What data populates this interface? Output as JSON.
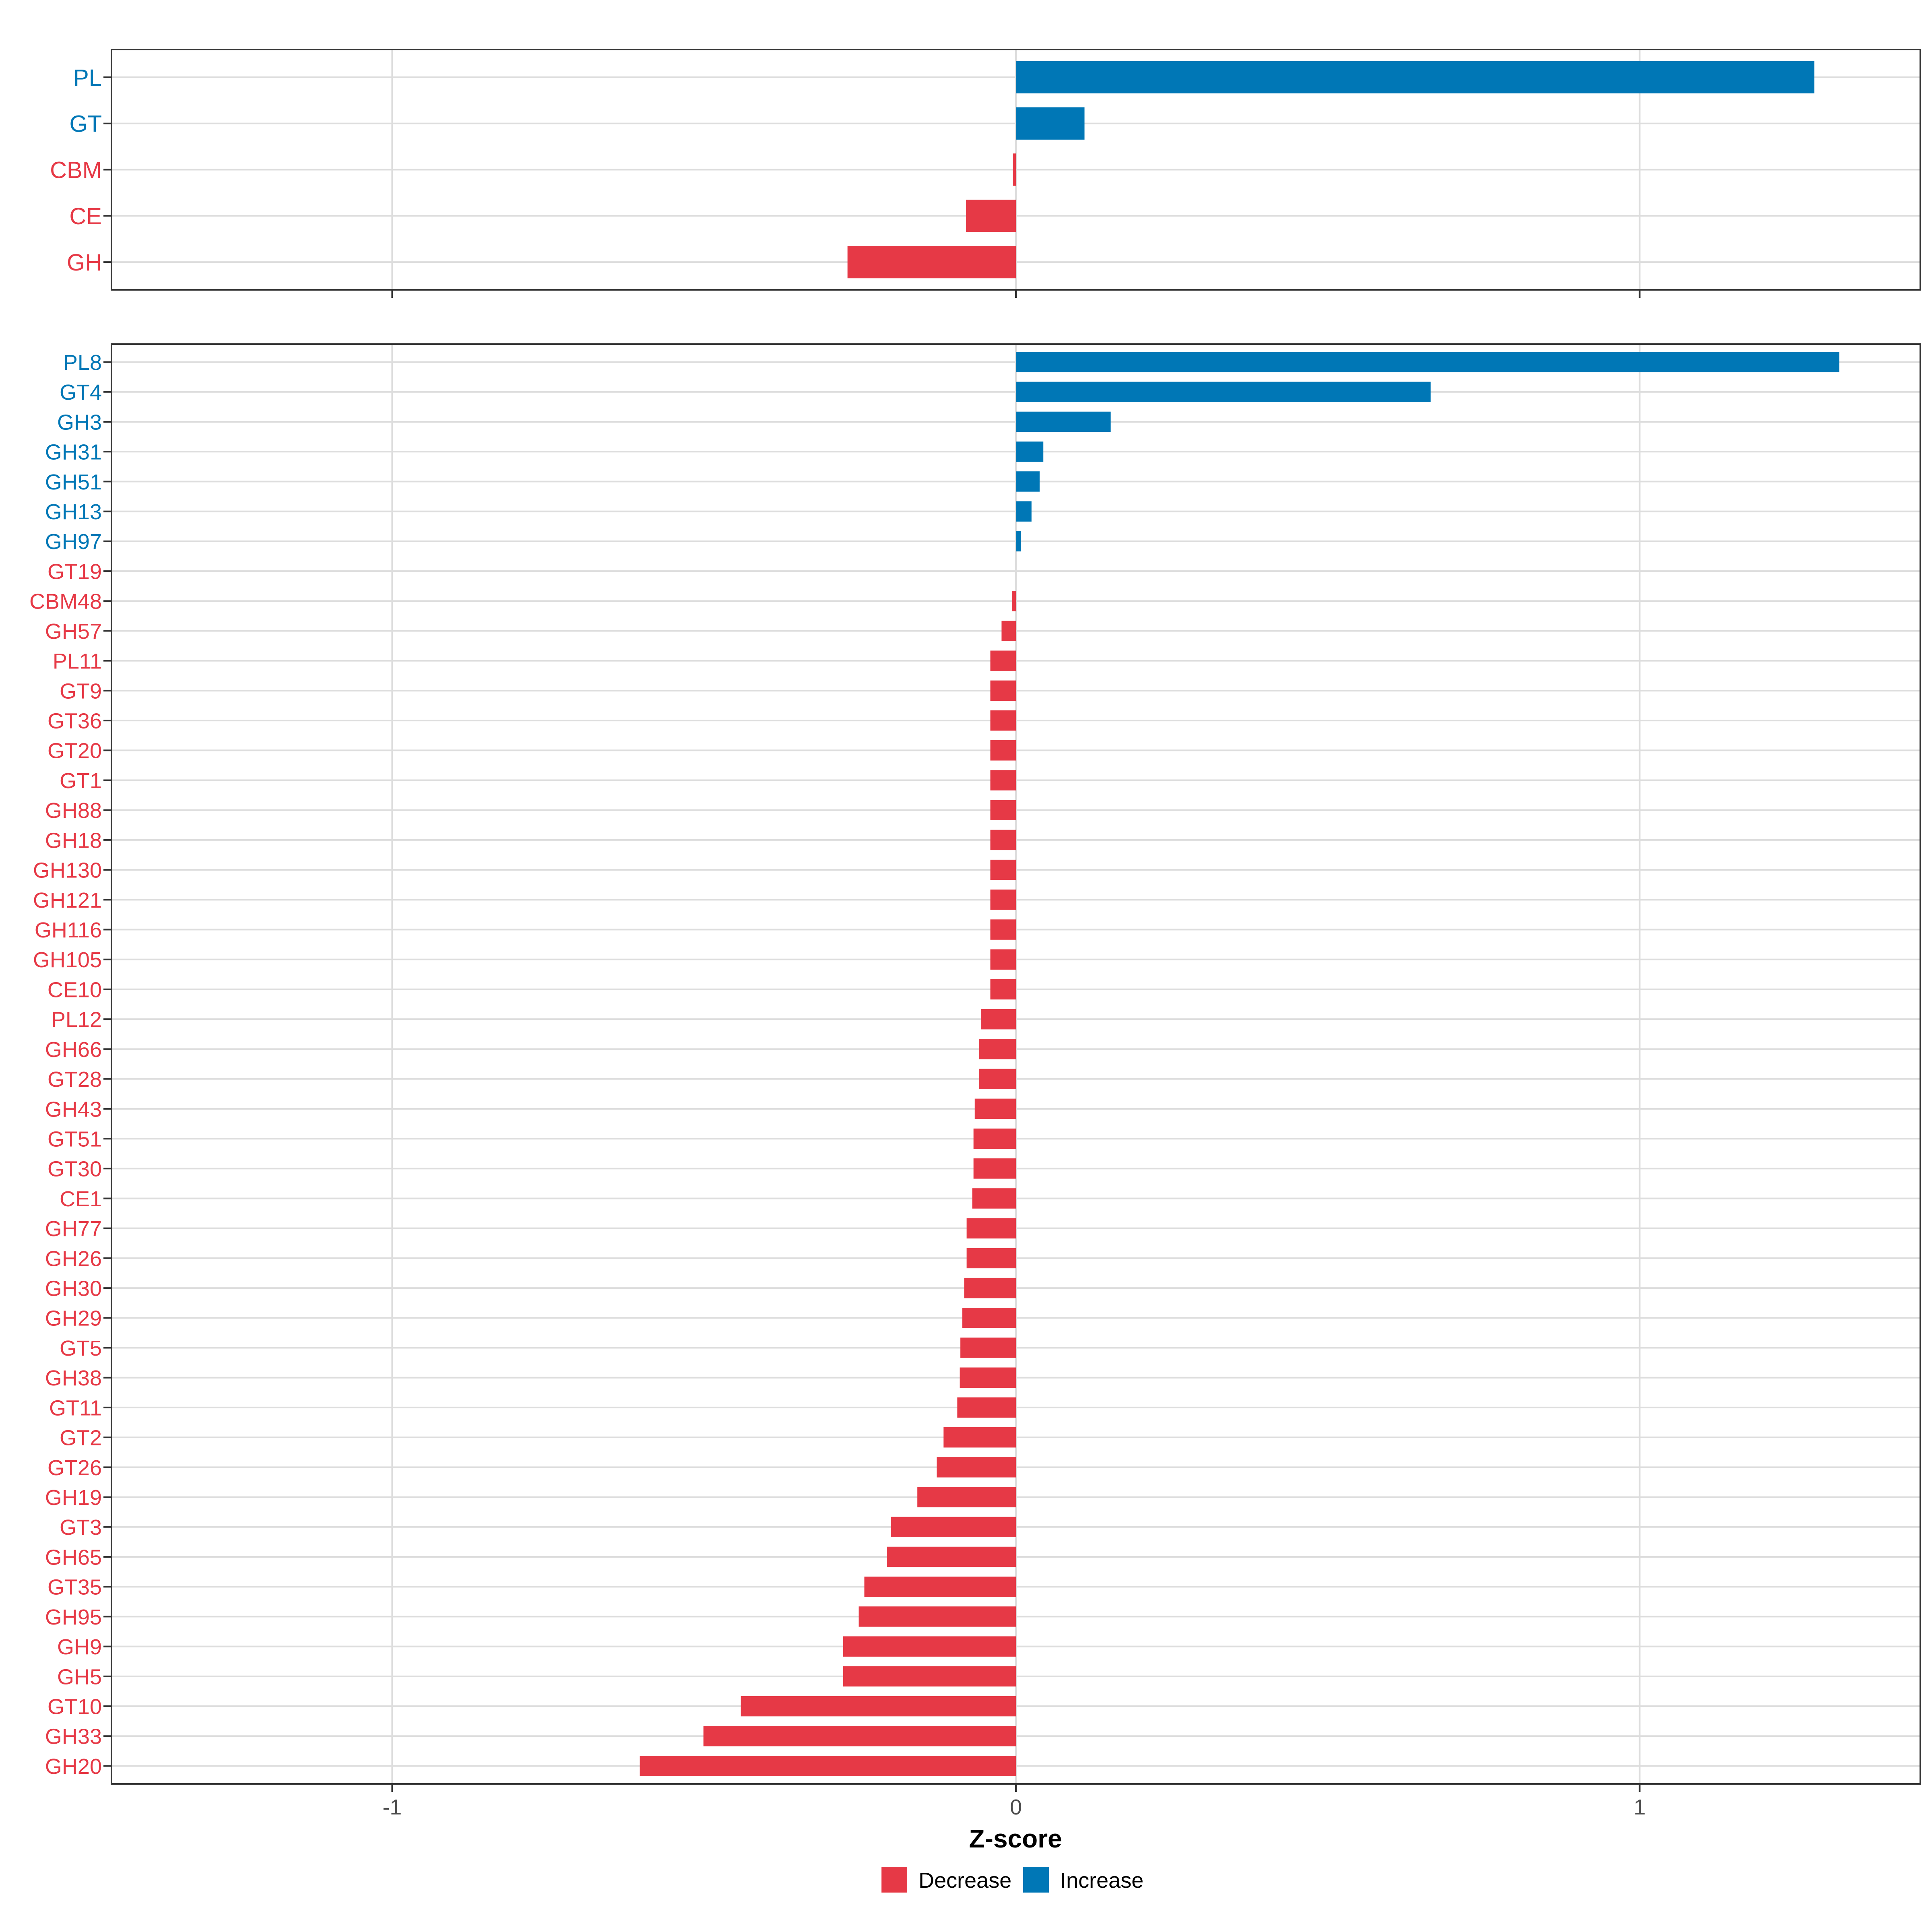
{
  "colors": {
    "decrease": "#E63946",
    "increase": "#0077B6",
    "grid": "#DDDDDD",
    "axis_text": "#4D4D4D",
    "frame": "#333333"
  },
  "chart_data": [
    {
      "type": "bar",
      "orientation": "horizontal",
      "panel": "top",
      "categories": [
        "PL",
        "GT",
        "CBM",
        "CE",
        "GH"
      ],
      "values": [
        1.28,
        0.11,
        -0.005,
        -0.08,
        -0.27
      ],
      "directions": [
        "Increase",
        "Increase",
        "Decrease",
        "Decrease",
        "Decrease"
      ],
      "xlim": [
        -1.45,
        1.45
      ],
      "xticks": [
        -1,
        0,
        1
      ],
      "grid": true
    },
    {
      "type": "bar",
      "orientation": "horizontal",
      "panel": "bottom",
      "categories": [
        "PL8",
        "GT4",
        "GH3",
        "GH31",
        "GH51",
        "GH13",
        "GH97",
        "GT19",
        "CBM48",
        "GH57",
        "PL11",
        "GT9",
        "GT36",
        "GT20",
        "GT1",
        "GH88",
        "GH18",
        "GH130",
        "GH121",
        "GH116",
        "GH105",
        "CE10",
        "PL12",
        "GH66",
        "GT28",
        "GH43",
        "GT51",
        "GT30",
        "CE1",
        "GH77",
        "GH26",
        "GH30",
        "GH29",
        "GT5",
        "GH38",
        "GT11",
        "GT2",
        "GT26",
        "GH19",
        "GT3",
        "GH65",
        "GT35",
        "GH95",
        "GH9",
        "GH5",
        "GT10",
        "GH33",
        "GH20"
      ],
      "values": [
        1.32,
        0.665,
        0.152,
        0.044,
        0.038,
        0.025,
        0.008,
        0.0,
        -0.006,
        -0.023,
        -0.041,
        -0.041,
        -0.041,
        -0.041,
        -0.041,
        -0.041,
        -0.041,
        -0.041,
        -0.041,
        -0.041,
        -0.041,
        -0.041,
        -0.056,
        -0.059,
        -0.059,
        -0.066,
        -0.068,
        -0.068,
        -0.07,
        -0.079,
        -0.079,
        -0.083,
        -0.086,
        -0.089,
        -0.09,
        -0.094,
        -0.116,
        -0.127,
        -0.158,
        -0.2,
        -0.207,
        -0.243,
        -0.252,
        -0.277,
        -0.277,
        -0.441,
        -0.501,
        -0.603
      ],
      "directions": [
        "Increase",
        "Increase",
        "Increase",
        "Increase",
        "Increase",
        "Increase",
        "Increase",
        "Decrease",
        "Decrease",
        "Decrease",
        "Decrease",
        "Decrease",
        "Decrease",
        "Decrease",
        "Decrease",
        "Decrease",
        "Decrease",
        "Decrease",
        "Decrease",
        "Decrease",
        "Decrease",
        "Decrease",
        "Decrease",
        "Decrease",
        "Decrease",
        "Decrease",
        "Decrease",
        "Decrease",
        "Decrease",
        "Decrease",
        "Decrease",
        "Decrease",
        "Decrease",
        "Decrease",
        "Decrease",
        "Decrease",
        "Decrease",
        "Decrease",
        "Decrease",
        "Decrease",
        "Decrease",
        "Decrease",
        "Decrease",
        "Decrease",
        "Decrease",
        "Decrease",
        "Decrease",
        "Decrease"
      ],
      "xlim": [
        -1.45,
        1.45
      ],
      "xticks": [
        -1,
        0,
        1
      ],
      "xtick_labels": [
        "-1",
        "0",
        "1"
      ],
      "xlabel": "Z-score",
      "grid": true
    }
  ],
  "legend": {
    "placement": "bottom",
    "items": [
      {
        "label": "Decrease",
        "key": "decrease"
      },
      {
        "label": "Increase",
        "key": "increase"
      }
    ]
  }
}
